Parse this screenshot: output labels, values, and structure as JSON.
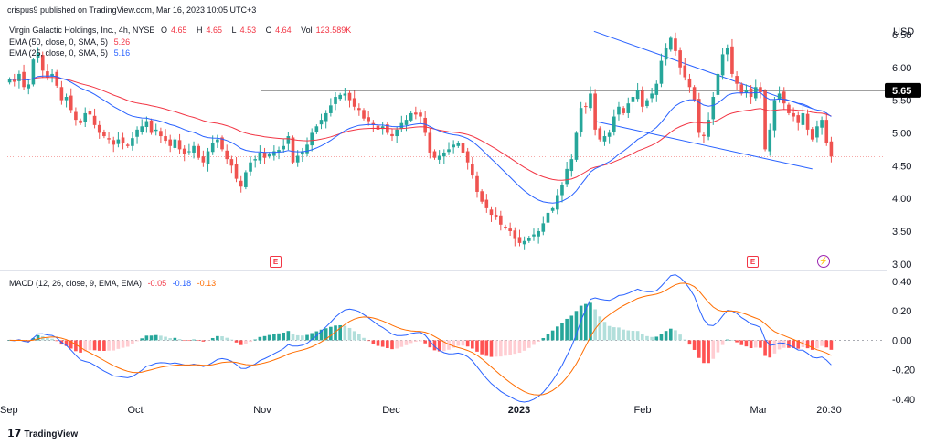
{
  "publish_note": "crispus9 published on TradingView.com, Mar 16, 2023 10:05 UTC+3",
  "brand": "TradingView",
  "currency": "USD",
  "legend": {
    "symbol": "Virgin Galactic Holdings, Inc., 4h, NYSE",
    "ohlc": [
      {
        "key": "O",
        "value": "4.65"
      },
      {
        "key": "H",
        "value": "4.65"
      },
      {
        "key": "L",
        "value": "4.53"
      },
      {
        "key": "C",
        "value": "4.64"
      }
    ],
    "vol_label": "Vol",
    "vol_value": "123.589K",
    "ema50_label": "EMA (50, close, 0, SMA, 5)",
    "ema50_value": "5.26",
    "ema25_label": "EMA (25, close, 0, SMA, 5)",
    "ema25_value": "5.16",
    "macd_label": "MACD (12, 26, close, 9, EMA, EMA)",
    "macd_values": [
      "-0.05",
      "-0.18",
      "-0.13"
    ]
  },
  "colors": {
    "up": "#26a69a",
    "down": "#ef5350",
    "ema50": "#f23645",
    "ema25": "#2962ff",
    "macd_line": "#2962ff",
    "signal_line": "#ff6d00",
    "channel": "#2962ff",
    "resistance": "#000000"
  },
  "badges": {
    "earnings": "E",
    "dividend": "⚡"
  },
  "chart_data": [
    {
      "type": "candlestick",
      "title": "Virgin Galactic Holdings, Inc., 4h, NYSE",
      "ylim": [
        2.9,
        6.75
      ],
      "y_ticks": [
        "6.50",
        "6.00",
        "5.50",
        "5.00",
        "4.50",
        "4.00",
        "3.50",
        "3.00"
      ],
      "x_ticks": [
        "Sep",
        "Oct",
        "Nov",
        "Dec",
        "2023",
        "Feb",
        "Mar",
        "20:30"
      ],
      "resistance_level": 5.65,
      "resistance_label": "5.65",
      "last_price": 4.64,
      "channel": {
        "upper": [
          [
            0.0,
            6.55
          ],
          [
            1.0,
            5.37
          ]
        ],
        "lower": [
          [
            0.0,
            5.18
          ],
          [
            1.0,
            4.45
          ]
        ],
        "x_range": [
          0.71,
          0.93
        ]
      },
      "closes": [
        5.82,
        5.78,
        5.9,
        5.7,
        5.74,
        6.12,
        6.22,
        5.95,
        5.85,
        5.9,
        5.72,
        5.5,
        5.55,
        5.35,
        5.2,
        5.15,
        5.3,
        5.28,
        5.12,
        5.0,
        4.95,
        4.9,
        4.82,
        4.9,
        4.84,
        4.8,
        4.92,
        5.05,
        5.1,
        5.18,
        5.0,
        5.05,
        4.95,
        4.88,
        4.8,
        4.9,
        4.75,
        4.68,
        4.72,
        4.8,
        4.62,
        4.55,
        4.72,
        4.85,
        4.9,
        4.75,
        4.6,
        4.5,
        4.3,
        4.18,
        4.4,
        4.55,
        4.6,
        4.7,
        4.62,
        4.68,
        4.72,
        4.74,
        4.8,
        4.95,
        4.55,
        4.65,
        4.72,
        4.82,
        5.0,
        5.1,
        5.2,
        5.3,
        5.42,
        5.55,
        5.58,
        5.6,
        5.5,
        5.4,
        5.35,
        5.22,
        5.18,
        5.12,
        5.05,
        5.1,
        5.0,
        4.95,
        5.05,
        5.15,
        5.2,
        5.3,
        5.28,
        5.25,
        5.0,
        4.7,
        4.62,
        4.65,
        4.7,
        4.75,
        4.82,
        4.85,
        4.7,
        4.55,
        4.35,
        4.1,
        3.95,
        3.85,
        3.75,
        3.72,
        3.6,
        3.55,
        3.5,
        3.38,
        3.32,
        3.35,
        3.4,
        3.45,
        3.5,
        3.62,
        3.78,
        3.85,
        4.05,
        4.2,
        4.45,
        4.6,
        5.0,
        5.38,
        5.4,
        5.6,
        5.05,
        4.9,
        4.95,
        5.0,
        5.25,
        5.4,
        5.3,
        5.45,
        5.55,
        5.65,
        5.4,
        5.5,
        5.6,
        5.75,
        6.1,
        6.3,
        6.45,
        6.25,
        6.0,
        5.85,
        5.7,
        5.5,
        5.0,
        4.95,
        5.2,
        5.55,
        5.9,
        6.2,
        6.3,
        5.9,
        5.75,
        5.6,
        5.65,
        5.55,
        5.7,
        5.62,
        4.75,
        5.05,
        5.5,
        5.6,
        5.45,
        5.3,
        5.25,
        5.15,
        5.3,
        5.05,
        4.9,
        5.1,
        5.2,
        4.85,
        4.64
      ]
    },
    {
      "type": "macd",
      "title": "MACD (12, 26, close, 9, EMA, EMA)",
      "ylim": [
        -0.42,
        0.45
      ],
      "y_ticks": [
        "0.40",
        "0.20",
        "0.00",
        "-0.20",
        "-0.40"
      ]
    }
  ]
}
